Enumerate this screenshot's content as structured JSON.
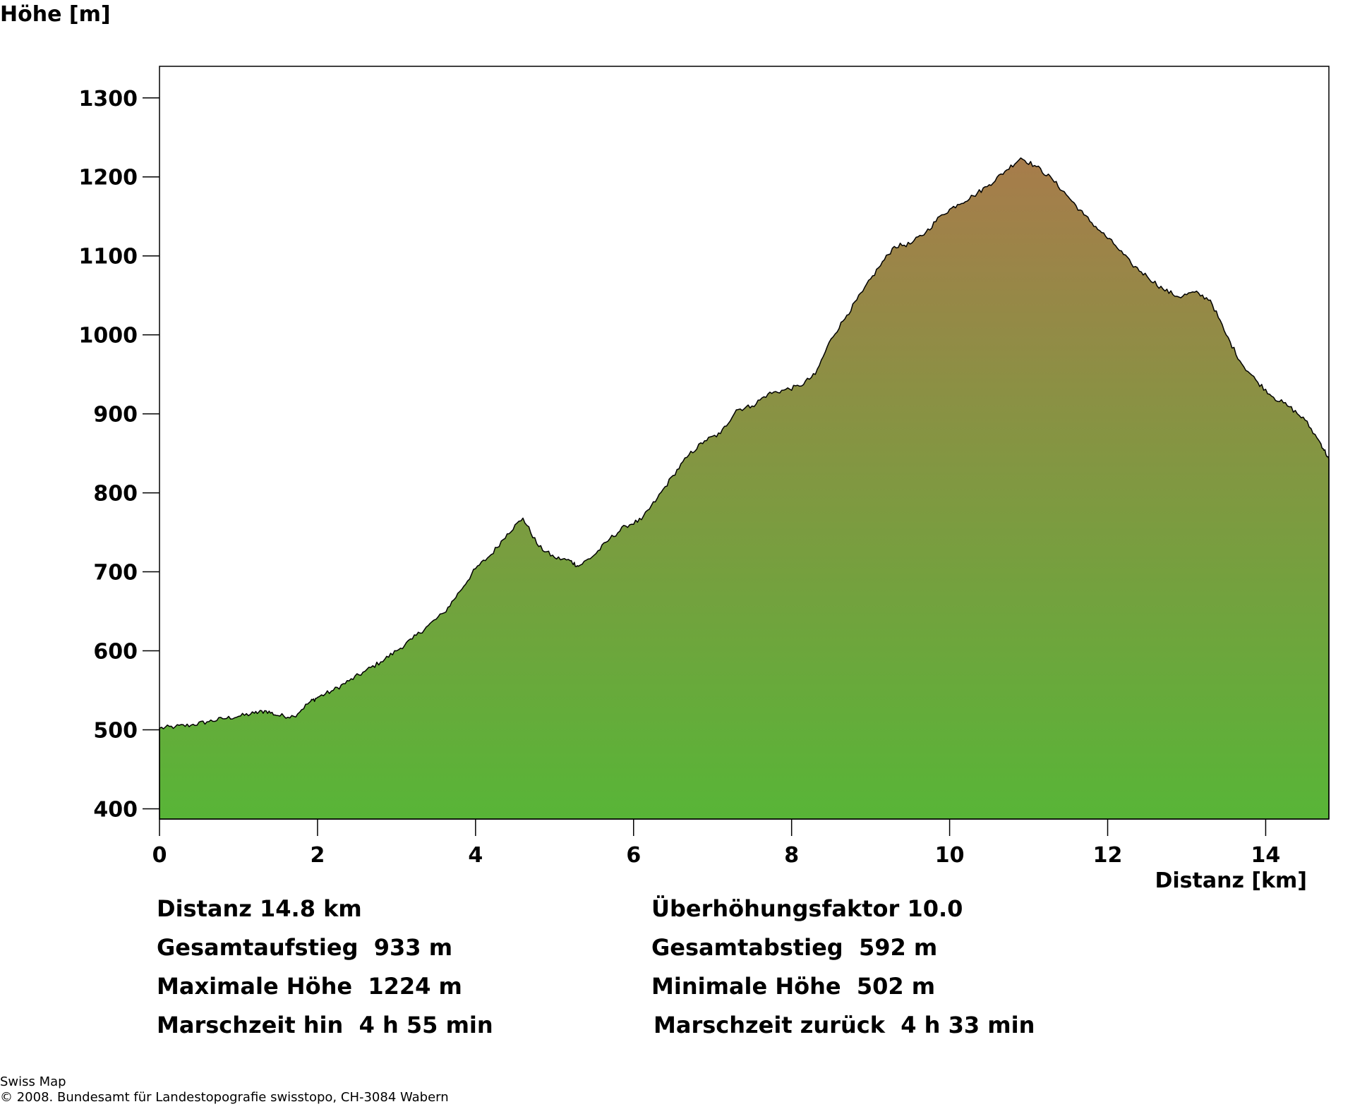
{
  "chart_data": {
    "type": "area",
    "ylabel": "Höhe [m]",
    "xlabel": "Distanz [km]",
    "xlim": [
      0,
      14.8
    ],
    "ylim": [
      387,
      1340
    ],
    "x_ticks": [
      0,
      2,
      4,
      6,
      8,
      10,
      12,
      14
    ],
    "x_tick_labels": [
      "0",
      "2",
      "4",
      "6",
      "8",
      "10",
      "12",
      "14"
    ],
    "y_ticks": [
      400,
      500,
      600,
      700,
      800,
      900,
      1000,
      1100,
      1200,
      1300
    ],
    "y_tick_labels": [
      "400",
      "500",
      "600",
      "700",
      "800",
      "900",
      "1000",
      "1100",
      "1200",
      "1300"
    ],
    "grid": false,
    "fill_gradient": {
      "top": "#a77c4b",
      "bottom": "#58b537"
    },
    "profile": {
      "x": [
        0,
        0.2,
        0.4,
        0.6,
        0.8,
        1.0,
        1.2,
        1.35,
        1.5,
        1.7,
        1.9,
        2.0,
        2.2,
        2.4,
        2.6,
        2.8,
        3.0,
        3.2,
        3.4,
        3.6,
        3.8,
        4.0,
        4.2,
        4.4,
        4.6,
        4.8,
        5.0,
        5.2,
        5.3,
        5.5,
        5.7,
        5.9,
        6.1,
        6.3,
        6.5,
        6.7,
        6.9,
        7.1,
        7.3,
        7.5,
        7.7,
        7.9,
        8.1,
        8.3,
        8.5,
        8.7,
        8.9,
        9.1,
        9.3,
        9.5,
        9.7,
        9.9,
        10.1,
        10.3,
        10.5,
        10.7,
        10.9,
        11.1,
        11.3,
        11.5,
        11.7,
        11.9,
        12.1,
        12.3,
        12.5,
        12.7,
        12.9,
        13.1,
        13.3,
        13.5,
        13.7,
        13.9,
        14.1,
        14.3,
        14.5,
        14.7,
        14.8
      ],
      "y": [
        502,
        504,
        506,
        510,
        514,
        517,
        521,
        524,
        518,
        517,
        535,
        541,
        550,
        562,
        574,
        586,
        600,
        615,
        632,
        648,
        675,
        704,
        722,
        748,
        768,
        732,
        718,
        714,
        707,
        721,
        742,
        758,
        766,
        793,
        822,
        848,
        866,
        875,
        905,
        910,
        925,
        930,
        935,
        950,
        995,
        1025,
        1055,
        1085,
        1112,
        1115,
        1130,
        1152,
        1165,
        1176,
        1190,
        1207,
        1224,
        1213,
        1197,
        1175,
        1152,
        1132,
        1113,
        1090,
        1074,
        1058,
        1048,
        1054,
        1044,
        1000,
        963,
        940,
        921,
        909,
        892,
        862,
        843
      ]
    }
  },
  "stats_left": [
    "Distanz 14.8 km",
    "Gesamtaufstieg  933 m",
    "Maximale Höhe  1224 m",
    "Marschzeit hin  4 h 55 min"
  ],
  "stats_right": [
    "Überhöhungsfaktor 10.0",
    "Gesamtabstieg  592 m",
    "Minimale Höhe  502 m",
    "Marschzeit zurück  4 h 33 min"
  ],
  "footer": {
    "line1": "Swiss Map",
    "line2": "© 2008. Bundesamt für Landestopografie swisstopo, CH-3084 Wabern"
  }
}
